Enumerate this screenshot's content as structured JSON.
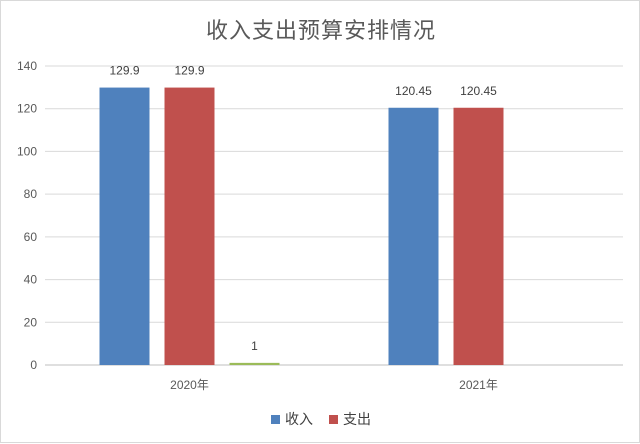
{
  "chart_data": {
    "type": "bar",
    "title": "收入支出预算安排情况",
    "categories": [
      "2020年",
      "2021年"
    ],
    "ylim": [
      0,
      140
    ],
    "yticks": [
      0,
      20,
      40,
      60,
      80,
      100,
      120,
      140
    ],
    "grid": true,
    "legend_position": "bottom",
    "series": [
      {
        "name": "收入",
        "color": "#4f81bd",
        "values": [
          129.9,
          120.45
        ]
      },
      {
        "name": "支出",
        "color": "#c0504d",
        "values": [
          129.9,
          120.45
        ]
      },
      {
        "name": "",
        "color": "#9bbb59",
        "values": [
          1,
          null
        ]
      }
    ],
    "data_labels": [
      [
        "129.9",
        "120.45"
      ],
      [
        "129.9",
        "120.45"
      ],
      [
        "1",
        ""
      ]
    ]
  }
}
